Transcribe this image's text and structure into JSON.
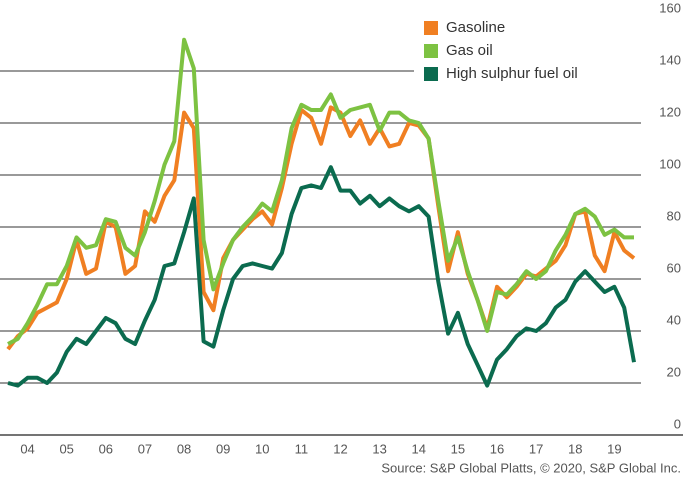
{
  "chart_data": {
    "type": "line",
    "source": "Source: S&P Global Platts, © 2020, S&P Global Inc.",
    "x": [
      4.0,
      4.25,
      4.5,
      4.75,
      5.0,
      5.25,
      5.5,
      5.75,
      6.0,
      6.25,
      6.5,
      6.75,
      7.0,
      7.25,
      7.5,
      7.75,
      8.0,
      8.25,
      8.5,
      8.75,
      9.0,
      9.25,
      9.5,
      9.75,
      10.0,
      10.25,
      10.5,
      10.75,
      11.0,
      11.25,
      11.5,
      11.75,
      12.0,
      12.25,
      12.5,
      12.75,
      13.0,
      13.25,
      13.5,
      13.75,
      14.0,
      14.25,
      14.5,
      14.75,
      15.0,
      15.25,
      15.5,
      15.75,
      16.0,
      16.25,
      16.5,
      16.75,
      17.0,
      17.25,
      17.5,
      17.75,
      18.0,
      18.25,
      18.5,
      18.75,
      19.0,
      19.25,
      19.5,
      19.75,
      20.0
    ],
    "series": [
      {
        "name": "Gasoline",
        "color": "#f07f22",
        "values": [
          33,
          38,
          41,
          47,
          49,
          51,
          60,
          75,
          62,
          64,
          82,
          80,
          62,
          65,
          86,
          82,
          92,
          98,
          124,
          118,
          55,
          48,
          68,
          75,
          79,
          83,
          86,
          81,
          95,
          112,
          125,
          122,
          112,
          126,
          124,
          115,
          121,
          112,
          118,
          111,
          112,
          120,
          119,
          114,
          88,
          63,
          78,
          62,
          52,
          41,
          57,
          53,
          57,
          62,
          61,
          64,
          67,
          73,
          85,
          86,
          69,
          63,
          78,
          71,
          68
        ]
      },
      {
        "name": "Gas oil",
        "color": "#7dc242",
        "values": [
          35,
          37,
          43,
          50,
          58,
          58,
          65,
          76,
          72,
          73,
          83,
          82,
          72,
          69,
          78,
          90,
          104,
          113,
          152,
          141,
          75,
          56,
          66,
          75,
          80,
          84,
          89,
          86,
          98,
          118,
          127,
          125,
          125,
          131,
          122,
          125,
          126,
          127,
          117,
          124,
          124,
          121,
          120,
          114,
          90,
          67,
          76,
          63,
          52,
          40,
          55,
          54,
          58,
          63,
          60,
          63,
          71,
          77,
          85,
          87,
          84,
          77,
          79,
          76,
          76
        ]
      },
      {
        "name": "High sulphur fuel oil",
        "color": "#0b6b4f",
        "values": [
          20,
          19,
          22,
          22,
          20,
          24,
          32,
          37,
          35,
          40,
          45,
          43,
          37,
          35,
          44,
          52,
          65,
          66,
          78,
          91,
          36,
          34,
          48,
          60,
          65,
          66,
          65,
          64,
          70,
          85,
          95,
          96,
          95,
          103,
          94,
          94,
          89,
          92,
          88,
          91,
          88,
          86,
          88,
          84,
          59,
          39,
          47,
          35,
          27,
          19,
          29,
          33,
          38,
          41,
          40,
          43,
          49,
          52,
          59,
          63,
          59,
          55,
          57,
          49,
          28
        ]
      }
    ],
    "xlim": [
      4,
      20.18
    ],
    "xticks": [
      {
        "value": 4.5,
        "label": "04"
      },
      {
        "value": 5.5,
        "label": "05"
      },
      {
        "value": 6.5,
        "label": "06"
      },
      {
        "value": 7.5,
        "label": "07"
      },
      {
        "value": 8.5,
        "label": "08"
      },
      {
        "value": 9.5,
        "label": "09"
      },
      {
        "value": 10.5,
        "label": "10"
      },
      {
        "value": 11.5,
        "label": "11"
      },
      {
        "value": 12.5,
        "label": "12"
      },
      {
        "value": 13.5,
        "label": "13"
      },
      {
        "value": 14.5,
        "label": "14"
      },
      {
        "value": 15.5,
        "label": "15"
      },
      {
        "value": 16.5,
        "label": "16"
      },
      {
        "value": 17.5,
        "label": "17"
      },
      {
        "value": 18.5,
        "label": "18"
      },
      {
        "value": 19.5,
        "label": "19"
      }
    ],
    "ylim": [
      0,
      160
    ],
    "yticks": [
      0,
      20,
      40,
      60,
      80,
      100,
      120,
      140,
      160
    ],
    "grid": true,
    "legend": "upper right"
  }
}
